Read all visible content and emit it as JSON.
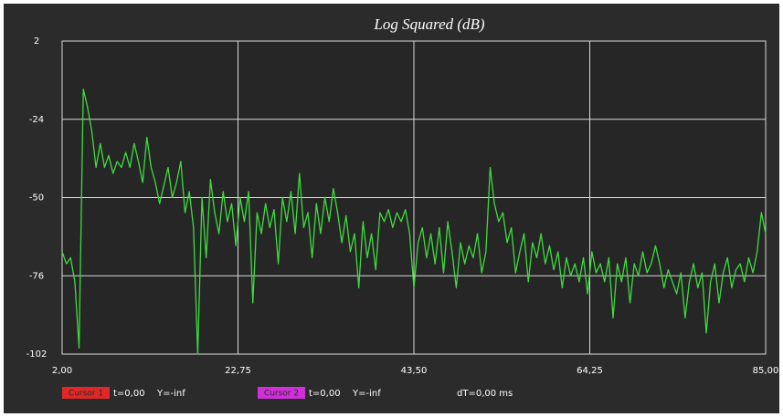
{
  "chart_data": {
    "type": "line",
    "title": "Log Squared (dB)",
    "x": [
      2,
      2.5,
      3,
      3.5,
      4,
      4.5,
      5,
      5.5,
      6,
      6.5,
      7,
      7.5,
      8,
      8.5,
      9,
      9.5,
      10,
      10.5,
      11,
      11.5,
      12,
      12.5,
      13,
      13.5,
      14,
      14.5,
      15,
      15.5,
      16,
      16.5,
      17,
      17.5,
      18,
      18.5,
      19,
      19.5,
      20,
      20.5,
      21,
      21.5,
      22,
      22.5,
      23,
      23.5,
      24,
      24.5,
      25,
      25.5,
      26,
      26.5,
      27,
      27.5,
      28,
      28.5,
      29,
      29.5,
      30,
      30.5,
      31,
      31.5,
      32,
      32.5,
      33,
      33.5,
      34,
      34.5,
      35,
      35.5,
      36,
      36.5,
      37,
      37.5,
      38,
      38.5,
      39,
      39.5,
      40,
      40.5,
      41,
      41.5,
      42,
      42.5,
      43,
      43.5,
      44,
      44.5,
      45,
      45.5,
      46,
      46.5,
      47,
      47.5,
      48,
      48.5,
      49,
      49.5,
      50,
      50.5,
      51,
      51.5,
      52,
      52.5,
      53,
      53.5,
      54,
      54.5,
      55,
      55.5,
      56,
      56.5,
      57,
      57.5,
      58,
      58.5,
      59,
      59.5,
      60,
      60.5,
      61,
      61.5,
      62,
      62.5,
      63,
      63.5,
      64,
      64.5,
      65,
      65.5,
      66,
      66.5,
      67,
      67.5,
      68,
      68.5,
      69,
      69.5,
      70,
      70.5,
      71,
      71.5,
      72,
      72.5,
      73,
      73.5,
      74,
      74.5,
      75,
      75.5,
      76,
      76.5,
      77,
      77.5,
      78,
      78.5,
      79,
      79.5,
      80,
      80.5,
      81,
      81.5,
      82,
      82.5,
      83,
      83.5,
      84,
      84.5,
      85
    ],
    "series": [
      {
        "color": "#3ddc3d",
        "values": [
          -68,
          -72,
          -70,
          -78,
          -100,
          -14,
          -20,
          -28,
          -40,
          -32,
          -40,
          -36,
          -42,
          -38,
          -40,
          -35,
          -40,
          -32,
          -38,
          -45,
          -30,
          -40,
          -45,
          -52,
          -46,
          -40,
          -50,
          -45,
          -38,
          -55,
          -48,
          -60,
          -102,
          -50,
          -70,
          -44,
          -55,
          -62,
          -48,
          -58,
          -52,
          -66,
          -50,
          -58,
          -48,
          -85,
          -55,
          -62,
          -52,
          -60,
          -54,
          -72,
          -50,
          -58,
          -48,
          -62,
          -42,
          -60,
          -55,
          -70,
          -52,
          -62,
          -50,
          -58,
          -47,
          -55,
          -65,
          -56,
          -68,
          -62,
          -80,
          -58,
          -70,
          -62,
          -74,
          -55,
          -58,
          -54,
          -60,
          -55,
          -58,
          -54,
          -62,
          -80,
          -65,
          -60,
          -70,
          -62,
          -72,
          -60,
          -75,
          -58,
          -68,
          -80,
          -65,
          -72,
          -66,
          -70,
          -62,
          -75,
          -68,
          -40,
          -52,
          -58,
          -55,
          -65,
          -60,
          -75,
          -68,
          -62,
          -78,
          -65,
          -70,
          -62,
          -72,
          -66,
          -74,
          -68,
          -80,
          -70,
          -76,
          -72,
          -78,
          -70,
          -82,
          -68,
          -75,
          -72,
          -78,
          -70,
          -90,
          -72,
          -78,
          -70,
          -85,
          -72,
          -76,
          -68,
          -75,
          -72,
          -66,
          -72,
          -80,
          -74,
          -78,
          -82,
          -75,
          -90,
          -78,
          -72,
          -80,
          -75,
          -95,
          -78,
          -72,
          -85,
          -75,
          -70,
          -80,
          -74,
          -72,
          -78,
          -70,
          -75,
          -68,
          -55,
          -62
        ]
      }
    ],
    "xlim": [
      2,
      85
    ],
    "xticks": [
      {
        "value": 2,
        "label": "2,00"
      },
      {
        "value": 22.75,
        "label": "22,75"
      },
      {
        "value": 43.5,
        "label": "43,50"
      },
      {
        "value": 64.25,
        "label": "64,25"
      },
      {
        "value": 85,
        "label": "85,00"
      }
    ],
    "ylim": [
      -102,
      2
    ],
    "yticks": [
      2,
      -24,
      -50,
      -76,
      -102
    ],
    "grid": true
  },
  "cursor_bar": {
    "cursors": [
      {
        "label": "Cursor 1",
        "color": "#e02828",
        "t": "t=0,00",
        "y": "Y=-inf"
      },
      {
        "label": "Cursor 2",
        "color": "#d030d8",
        "t": "t=0,00",
        "y": "Y=-inf"
      }
    ],
    "dt": "dT=0,00 ms"
  }
}
